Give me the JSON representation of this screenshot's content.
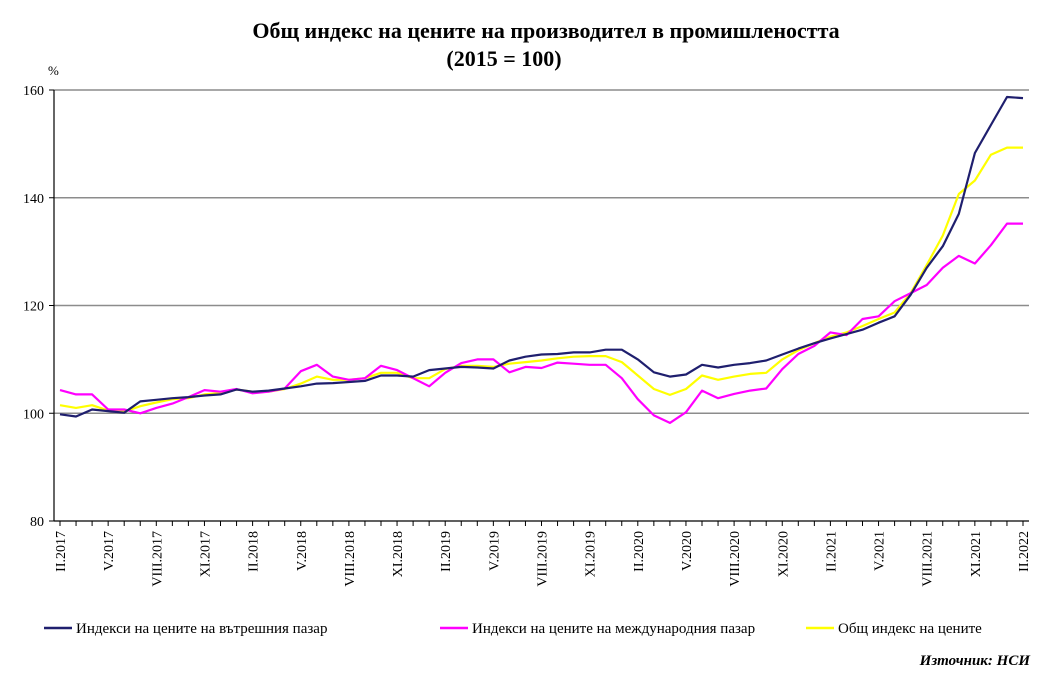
{
  "chart_data": {
    "type": "line",
    "title": "Общ индекс на цените на производител в промишлеността",
    "subtitle": "(2015 = 100)",
    "unit_label": "%",
    "ylim": [
      80,
      160
    ],
    "yticks": [
      80,
      100,
      120,
      140,
      160
    ],
    "grid": true,
    "legend_position": "bottom",
    "source": "Източник: НСИ",
    "x_tick_labels": [
      "II.2017",
      "V.2017",
      "VIII.2017",
      "XI.2017",
      "II.2018",
      "V.2018",
      "VIII.2018",
      "XI.2018",
      "II.2019",
      "V.2019",
      "VIII.2019",
      "XI.2019",
      "II.2020",
      "V.2020",
      "VIII.2020",
      "XI.2020",
      "II.2021",
      "V.2021",
      "VIII.2021",
      "XI.2021",
      "II.2022"
    ],
    "x": [
      "II.2017",
      "III.2017",
      "IV.2017",
      "V.2017",
      "VI.2017",
      "VII.2017",
      "VIII.2017",
      "IX.2017",
      "X.2017",
      "XI.2017",
      "XII.2017",
      "I.2018",
      "II.2018",
      "III.2018",
      "IV.2018",
      "V.2018",
      "VI.2018",
      "VII.2018",
      "VIII.2018",
      "IX.2018",
      "X.2018",
      "XI.2018",
      "XII.2018",
      "I.2019",
      "II.2019",
      "III.2019",
      "IV.2019",
      "V.2019",
      "VI.2019",
      "VII.2019",
      "VIII.2019",
      "IX.2019",
      "X.2019",
      "XI.2019",
      "XII.2019",
      "I.2020",
      "II.2020",
      "III.2020",
      "IV.2020",
      "V.2020",
      "VI.2020",
      "VII.2020",
      "VIII.2020",
      "IX.2020",
      "X.2020",
      "XI.2020",
      "XII.2020",
      "I.2021",
      "II.2021",
      "III.2021",
      "IV.2021",
      "V.2021",
      "VI.2021",
      "VII.2021",
      "VIII.2021",
      "IX.2021",
      "X.2021",
      "XI.2021",
      "XII.2021",
      "I.2022",
      "II.2022"
    ],
    "series": [
      {
        "name": "Индекси на цените на вътрешния пазар",
        "color": "#1f1f6e",
        "values": [
          99.8,
          99.4,
          100.7,
          100.4,
          100.1,
          102.2,
          102.5,
          102.8,
          103.0,
          103.3,
          103.5,
          104.4,
          104.0,
          104.2,
          104.6,
          105.0,
          105.5,
          105.6,
          105.8,
          106.0,
          107.0,
          107.0,
          106.8,
          108.0,
          108.3,
          108.6,
          108.5,
          108.3,
          109.8,
          110.5,
          110.9,
          111.0,
          111.3,
          111.3,
          111.8,
          111.8,
          110.0,
          107.6,
          106.8,
          107.2,
          109.0,
          108.5,
          109.0,
          109.3,
          109.8,
          110.9,
          112.0,
          113.0,
          113.9,
          114.7,
          115.5,
          116.8,
          118.0,
          122.0,
          127.0,
          131.0,
          137.0,
          148.3,
          153.5,
          158.7,
          158.5
        ]
      },
      {
        "name": "Индекси на цените на международния пазар",
        "color": "#ff00ff",
        "values": [
          104.3,
          103.5,
          103.5,
          100.7,
          100.7,
          100.0,
          101.0,
          101.8,
          103.0,
          104.3,
          104.0,
          104.5,
          103.7,
          104.0,
          104.6,
          107.8,
          109.0,
          106.8,
          106.2,
          106.5,
          108.8,
          108.0,
          106.5,
          105.0,
          107.5,
          109.3,
          110.0,
          110.0,
          107.6,
          108.6,
          108.4,
          109.4,
          109.2,
          109.0,
          109.0,
          106.5,
          102.6,
          99.6,
          98.2,
          100.2,
          104.2,
          102.8,
          103.6,
          104.2,
          104.6,
          108.2,
          111.0,
          112.5,
          115.0,
          114.5,
          117.5,
          118.0,
          120.8,
          122.3,
          123.8,
          127.0,
          129.2,
          127.8,
          131.2,
          135.2,
          135.2
        ]
      },
      {
        "name": "Общ индекс на цените",
        "color": "#ffff00",
        "values": [
          101.5,
          101.0,
          101.5,
          100.5,
          100.3,
          101.3,
          102.0,
          102.6,
          102.8,
          103.5,
          103.8,
          104.4,
          104.0,
          104.0,
          104.5,
          105.5,
          106.8,
          106.2,
          106.2,
          106.5,
          107.5,
          107.5,
          106.5,
          106.5,
          108.2,
          108.8,
          108.8,
          108.6,
          109.2,
          109.5,
          109.8,
          110.2,
          110.5,
          110.6,
          110.6,
          109.5,
          107.0,
          104.5,
          103.4,
          104.5,
          107.0,
          106.2,
          106.8,
          107.3,
          107.5,
          110.0,
          111.7,
          113.0,
          114.2,
          115.0,
          116.2,
          117.5,
          118.7,
          122.3,
          127.5,
          133.0,
          140.7,
          143.2,
          148.0,
          149.3,
          149.3
        ]
      }
    ]
  }
}
